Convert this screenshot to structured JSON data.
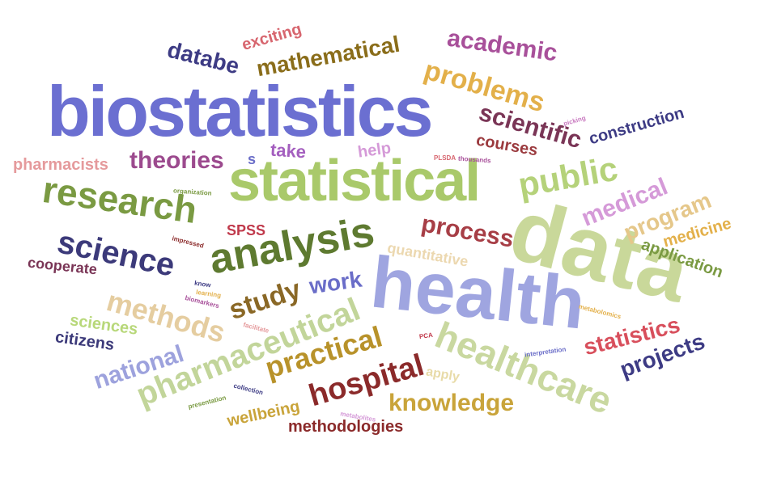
{
  "words": [
    {
      "text": "biostatistics",
      "color": "#6b6fd1"
    },
    {
      "text": "statistical",
      "color": "#a9c96a"
    },
    {
      "text": "data",
      "color": "#c9d89a"
    },
    {
      "text": "health",
      "color": "#9fa5e0"
    },
    {
      "text": "research",
      "color": "#7a9a42"
    },
    {
      "text": "analysis",
      "color": "#5e7a30"
    },
    {
      "text": "healthcare",
      "color": "#c9d8a0"
    },
    {
      "text": "pharmaceutical",
      "color": "#c2d59a"
    },
    {
      "text": "science",
      "color": "#3c3a7a"
    },
    {
      "text": "public",
      "color": "#b5d27a"
    },
    {
      "text": "methods",
      "color": "#e5cda0"
    },
    {
      "text": "hospital",
      "color": "#8b2a2a"
    },
    {
      "text": "practical",
      "color": "#b8922a"
    },
    {
      "text": "problems",
      "color": "#e3b04a"
    },
    {
      "text": "academic",
      "color": "#a8509a"
    },
    {
      "text": "mathematical",
      "color": "#8a6d1a"
    },
    {
      "text": "scientific",
      "color": "#7a3556"
    },
    {
      "text": "theories",
      "color": "#9c4a8e"
    },
    {
      "text": "databe",
      "color": "#3d3b84"
    },
    {
      "text": "study",
      "color": "#8a6826"
    },
    {
      "text": "medical",
      "color": "#d59ad8"
    },
    {
      "text": "program",
      "color": "#e5c78a"
    },
    {
      "text": "knowledge",
      "color": "#c9a43a"
    },
    {
      "text": "national",
      "color": "#9da2dd"
    },
    {
      "text": "statistics",
      "color": "#d84f5c"
    },
    {
      "text": "projects",
      "color": "#3d3b84"
    },
    {
      "text": "process",
      "color": "#a73e46"
    },
    {
      "text": "work",
      "color": "#6a6dc8"
    },
    {
      "text": "pharmacists",
      "color": "#e59a9c"
    },
    {
      "text": "construction",
      "color": "#3d3b84"
    },
    {
      "text": "exciting",
      "color": "#d7656e"
    },
    {
      "text": "courses",
      "color": "#9b3a3e"
    },
    {
      "text": "take",
      "color": "#a45fbf"
    },
    {
      "text": "help",
      "color": "#d59ad8"
    },
    {
      "text": "application",
      "color": "#7a9a42"
    },
    {
      "text": "medicine",
      "color": "#e3b04a"
    },
    {
      "text": "quantitative",
      "color": "#ecd8b0"
    },
    {
      "text": "sciences",
      "color": "#b8d87a"
    },
    {
      "text": "citizens",
      "color": "#3c3a7a"
    },
    {
      "text": "cooperate",
      "color": "#7a3556"
    },
    {
      "text": "SPSS",
      "color": "#c0394b"
    },
    {
      "text": "wellbeing",
      "color": "#c9a43a"
    },
    {
      "text": "methodologies",
      "color": "#8b2a2a"
    },
    {
      "text": "apply",
      "color": "#e8dba8"
    },
    {
      "text": "s",
      "color": "#6a6dc8"
    },
    {
      "text": "organization",
      "color": "#7a9a42"
    },
    {
      "text": "impressed",
      "color": "#8b2a2a"
    },
    {
      "text": "know",
      "color": "#3d3b84"
    },
    {
      "text": "learning",
      "color": "#e3b04a"
    },
    {
      "text": "biomarkers",
      "color": "#a8509a"
    },
    {
      "text": "facilitate",
      "color": "#e59a9c"
    },
    {
      "text": "collection",
      "color": "#3d3b84"
    },
    {
      "text": "presentation",
      "color": "#7a9a42"
    },
    {
      "text": "metabolites",
      "color": "#d59ad8"
    },
    {
      "text": "PCA",
      "color": "#c0394b"
    },
    {
      "text": "interpretation",
      "color": "#6a6dc8"
    },
    {
      "text": "metabolomics",
      "color": "#e3b04a"
    },
    {
      "text": "PLSDA",
      "color": "#d7656e"
    },
    {
      "text": "thousands",
      "color": "#a8509a"
    },
    {
      "text": "picking",
      "color": "#c97ac0"
    }
  ]
}
